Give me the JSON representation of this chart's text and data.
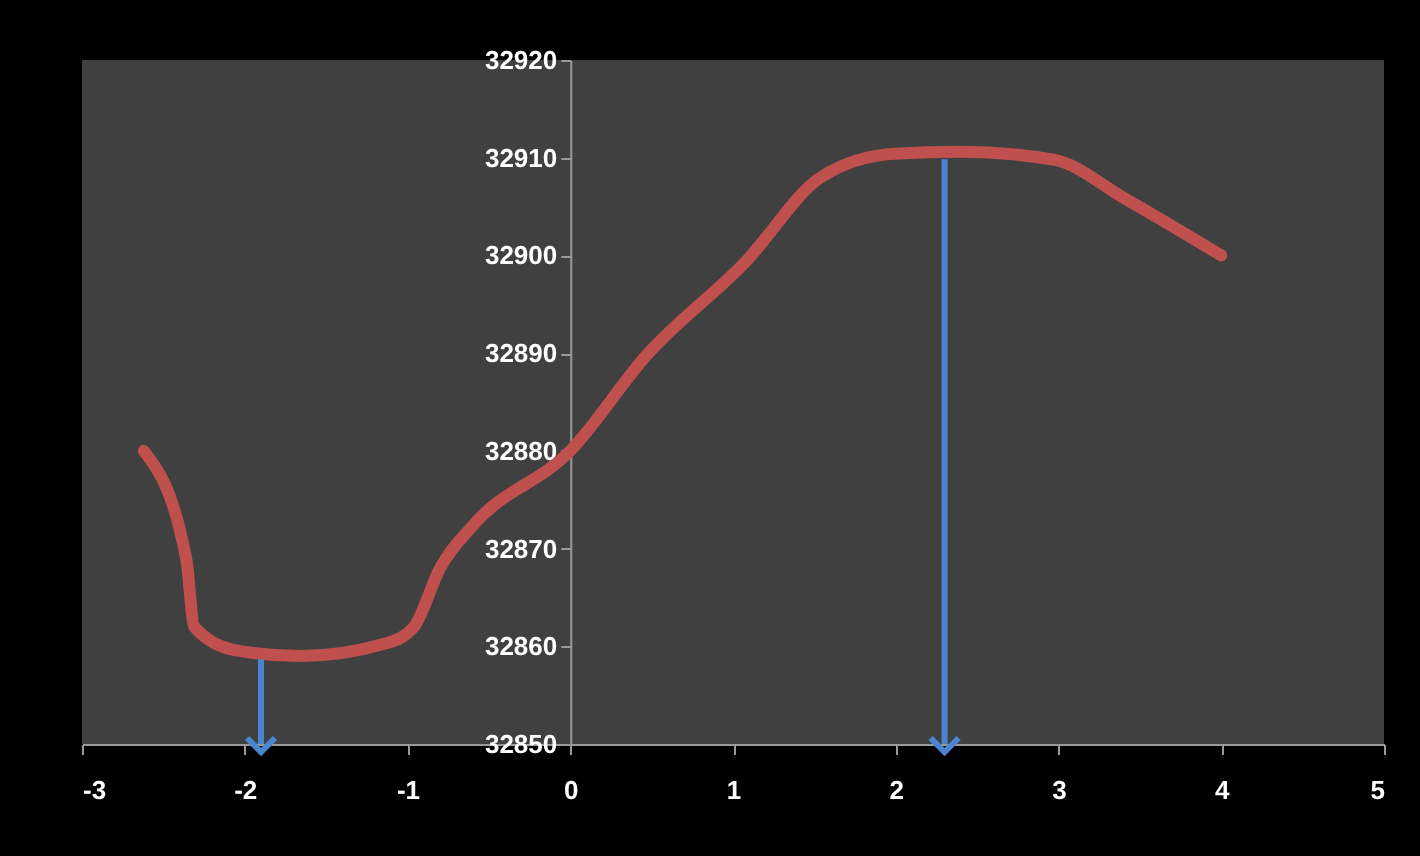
{
  "chart_data": {
    "type": "line",
    "x": [
      -2.62,
      -2.36,
      -2.31,
      -2.06,
      -1.66,
      -1.13,
      -0.96,
      -0.8,
      -0.59,
      0,
      0.47,
      1.08,
      1.54,
      1.99,
      2.4,
      2.97,
      3.42,
      4.0
    ],
    "series": [
      {
        "color": "#c0504d",
        "values": [
          32880,
          32869,
          32862,
          32859.6,
          32859,
          32860.3,
          32862,
          32868,
          32872.5,
          32880,
          32889.8,
          32899.4,
          32908,
          32910.4,
          32910.6,
          32909.8,
          32905.7,
          32900
        ]
      }
    ],
    "xlim": [
      -3,
      5
    ],
    "xticks": [
      -3,
      -2,
      -1,
      0,
      1,
      2,
      3,
      4,
      5
    ],
    "ylim": [
      32850,
      32920
    ],
    "yticks": [
      32850,
      32860,
      32870,
      32880,
      32890,
      32900,
      32910,
      32920
    ],
    "ref_lines": [
      {
        "axis": "x",
        "value": -1.9,
        "color": "#4a86d0"
      },
      {
        "axis": "x",
        "value": 2.3,
        "color": "#4a86d0"
      }
    ],
    "grid": false,
    "marker": "none",
    "line_style": "solid"
  }
}
